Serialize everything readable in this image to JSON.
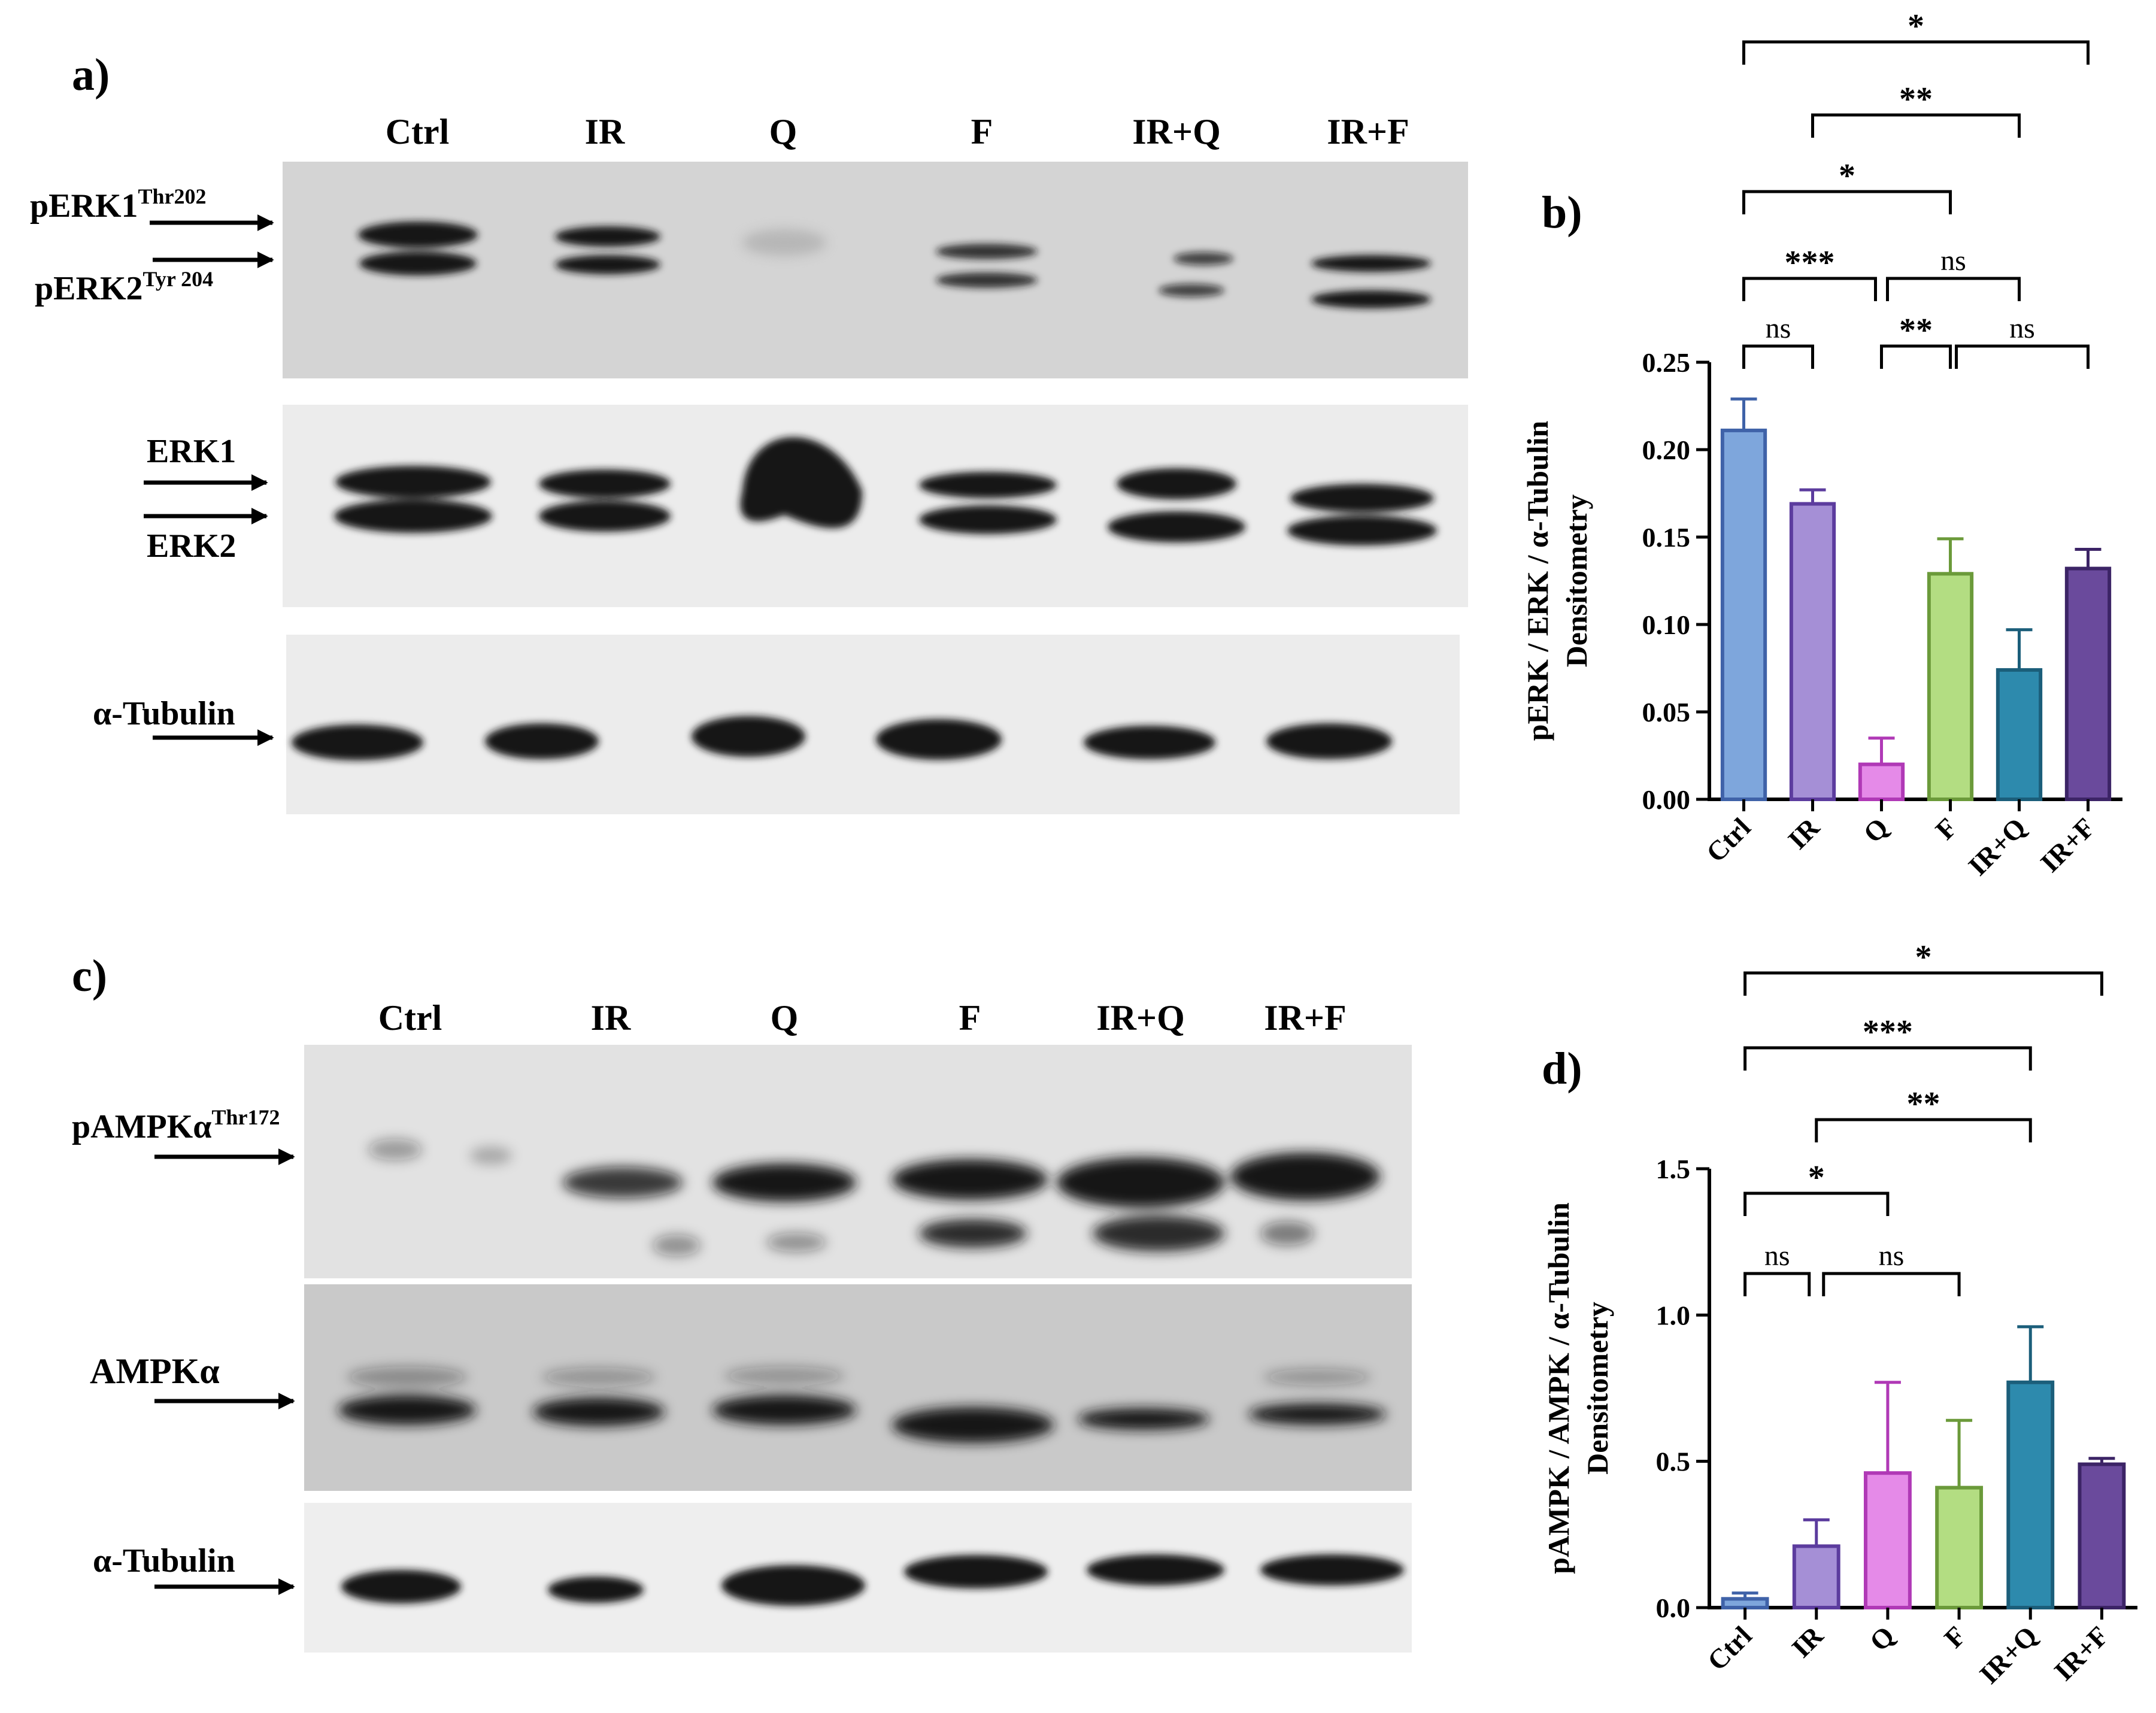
{
  "panel_labels": {
    "a": "a)",
    "b": "b)",
    "c": "c)",
    "d": "d)"
  },
  "colors": {
    "ctrl": "#7ea6dc",
    "ir": "#a58fd6",
    "q": "#e58ae8",
    "f": "#b3dd82",
    "irq": "#2d8aad",
    "irf": "#6a4a9c",
    "ctrl_edge": "#3f62a8",
    "ir_edge": "#5c3c9e",
    "q_edge": "#b039b6",
    "f_edge": "#6b9a3a",
    "irq_edge": "#1b5e7a",
    "irf_edge": "#3c2466",
    "blot_bg_top": "#d2d2d2",
    "blot_bg": "#e6e6e6",
    "band": "#141414"
  },
  "blot_a": {
    "lanes": [
      "Ctrl",
      "IR",
      "Q",
      "F",
      "IR+Q",
      "IR+F"
    ],
    "pERK1": {
      "main": "pERK1",
      "sup": "Thr202"
    },
    "pERK2": {
      "main": "pERK2",
      "sup": "Tyr 204"
    },
    "erk1": "ERK1",
    "erk2": "ERK2",
    "tubulin": "α-Tubulin"
  },
  "blot_c": {
    "lanes": [
      "Ctrl",
      "IR",
      "Q",
      "F",
      "IR+Q",
      "IR+F"
    ],
    "pAMPK": {
      "main": "pAMPKα",
      "sup": "Thr172"
    },
    "ampk": "AMPKα",
    "tubulin": "α-Tubulin"
  },
  "chart_data": [
    {
      "type": "bar",
      "panel": "b)",
      "categories": [
        "Ctrl",
        "IR",
        "Q",
        "F",
        "IR+Q",
        "IR+F"
      ],
      "values": [
        0.211,
        0.169,
        0.02,
        0.129,
        0.074,
        0.132
      ],
      "errors": [
        0.018,
        0.008,
        0.015,
        0.02,
        0.023,
        0.011
      ],
      "ylabel_line1": "pERK / ERK / α-Tubulin",
      "ylabel_line2": "Densitometry",
      "ylim": [
        0,
        0.25
      ],
      "yticks": [
        "0.00",
        "0.05",
        "0.10",
        "0.15",
        "0.20",
        "0.25"
      ],
      "grid": false,
      "significance": [
        {
          "from": "Ctrl",
          "to": "IR",
          "label": "ns"
        },
        {
          "from": "Q",
          "to": "F",
          "label": "**"
        },
        {
          "from": "F",
          "to": "IR+F",
          "label": "ns"
        },
        {
          "from": "Ctrl",
          "to": "Q",
          "label": "***"
        },
        {
          "from": "Q",
          "to": "IR+Q",
          "label": "ns"
        },
        {
          "from": "Ctrl",
          "to": "F",
          "label": "*"
        },
        {
          "from": "IR",
          "to": "IR+Q",
          "label": "**"
        },
        {
          "from": "Ctrl",
          "to": "IR+F",
          "label": "*"
        }
      ]
    },
    {
      "type": "bar",
      "panel": "d)",
      "categories": [
        "Ctrl",
        "IR",
        "Q",
        "F",
        "IR+Q",
        "IR+F"
      ],
      "values": [
        0.03,
        0.21,
        0.46,
        0.41,
        0.77,
        0.49
      ],
      "errors": [
        0.02,
        0.09,
        0.31,
        0.23,
        0.19,
        0.02
      ],
      "ylabel_line1": "pAMPK / AMPK / α-Tubulin",
      "ylabel_line2": "Densitometry",
      "ylim": [
        0,
        1.5
      ],
      "yticks": [
        "0.0",
        "0.5",
        "1.0",
        "1.5"
      ],
      "grid": false,
      "significance": [
        {
          "from": "Ctrl",
          "to": "IR",
          "label": "ns"
        },
        {
          "from": "IR",
          "to": "F",
          "label": "ns"
        },
        {
          "from": "Ctrl",
          "to": "Q",
          "label": "*"
        },
        {
          "from": "IR",
          "to": "IR+Q",
          "label": "**"
        },
        {
          "from": "Ctrl",
          "to": "IR+Q",
          "label": "***"
        },
        {
          "from": "Ctrl",
          "to": "IR+F",
          "label": "*"
        }
      ]
    }
  ]
}
